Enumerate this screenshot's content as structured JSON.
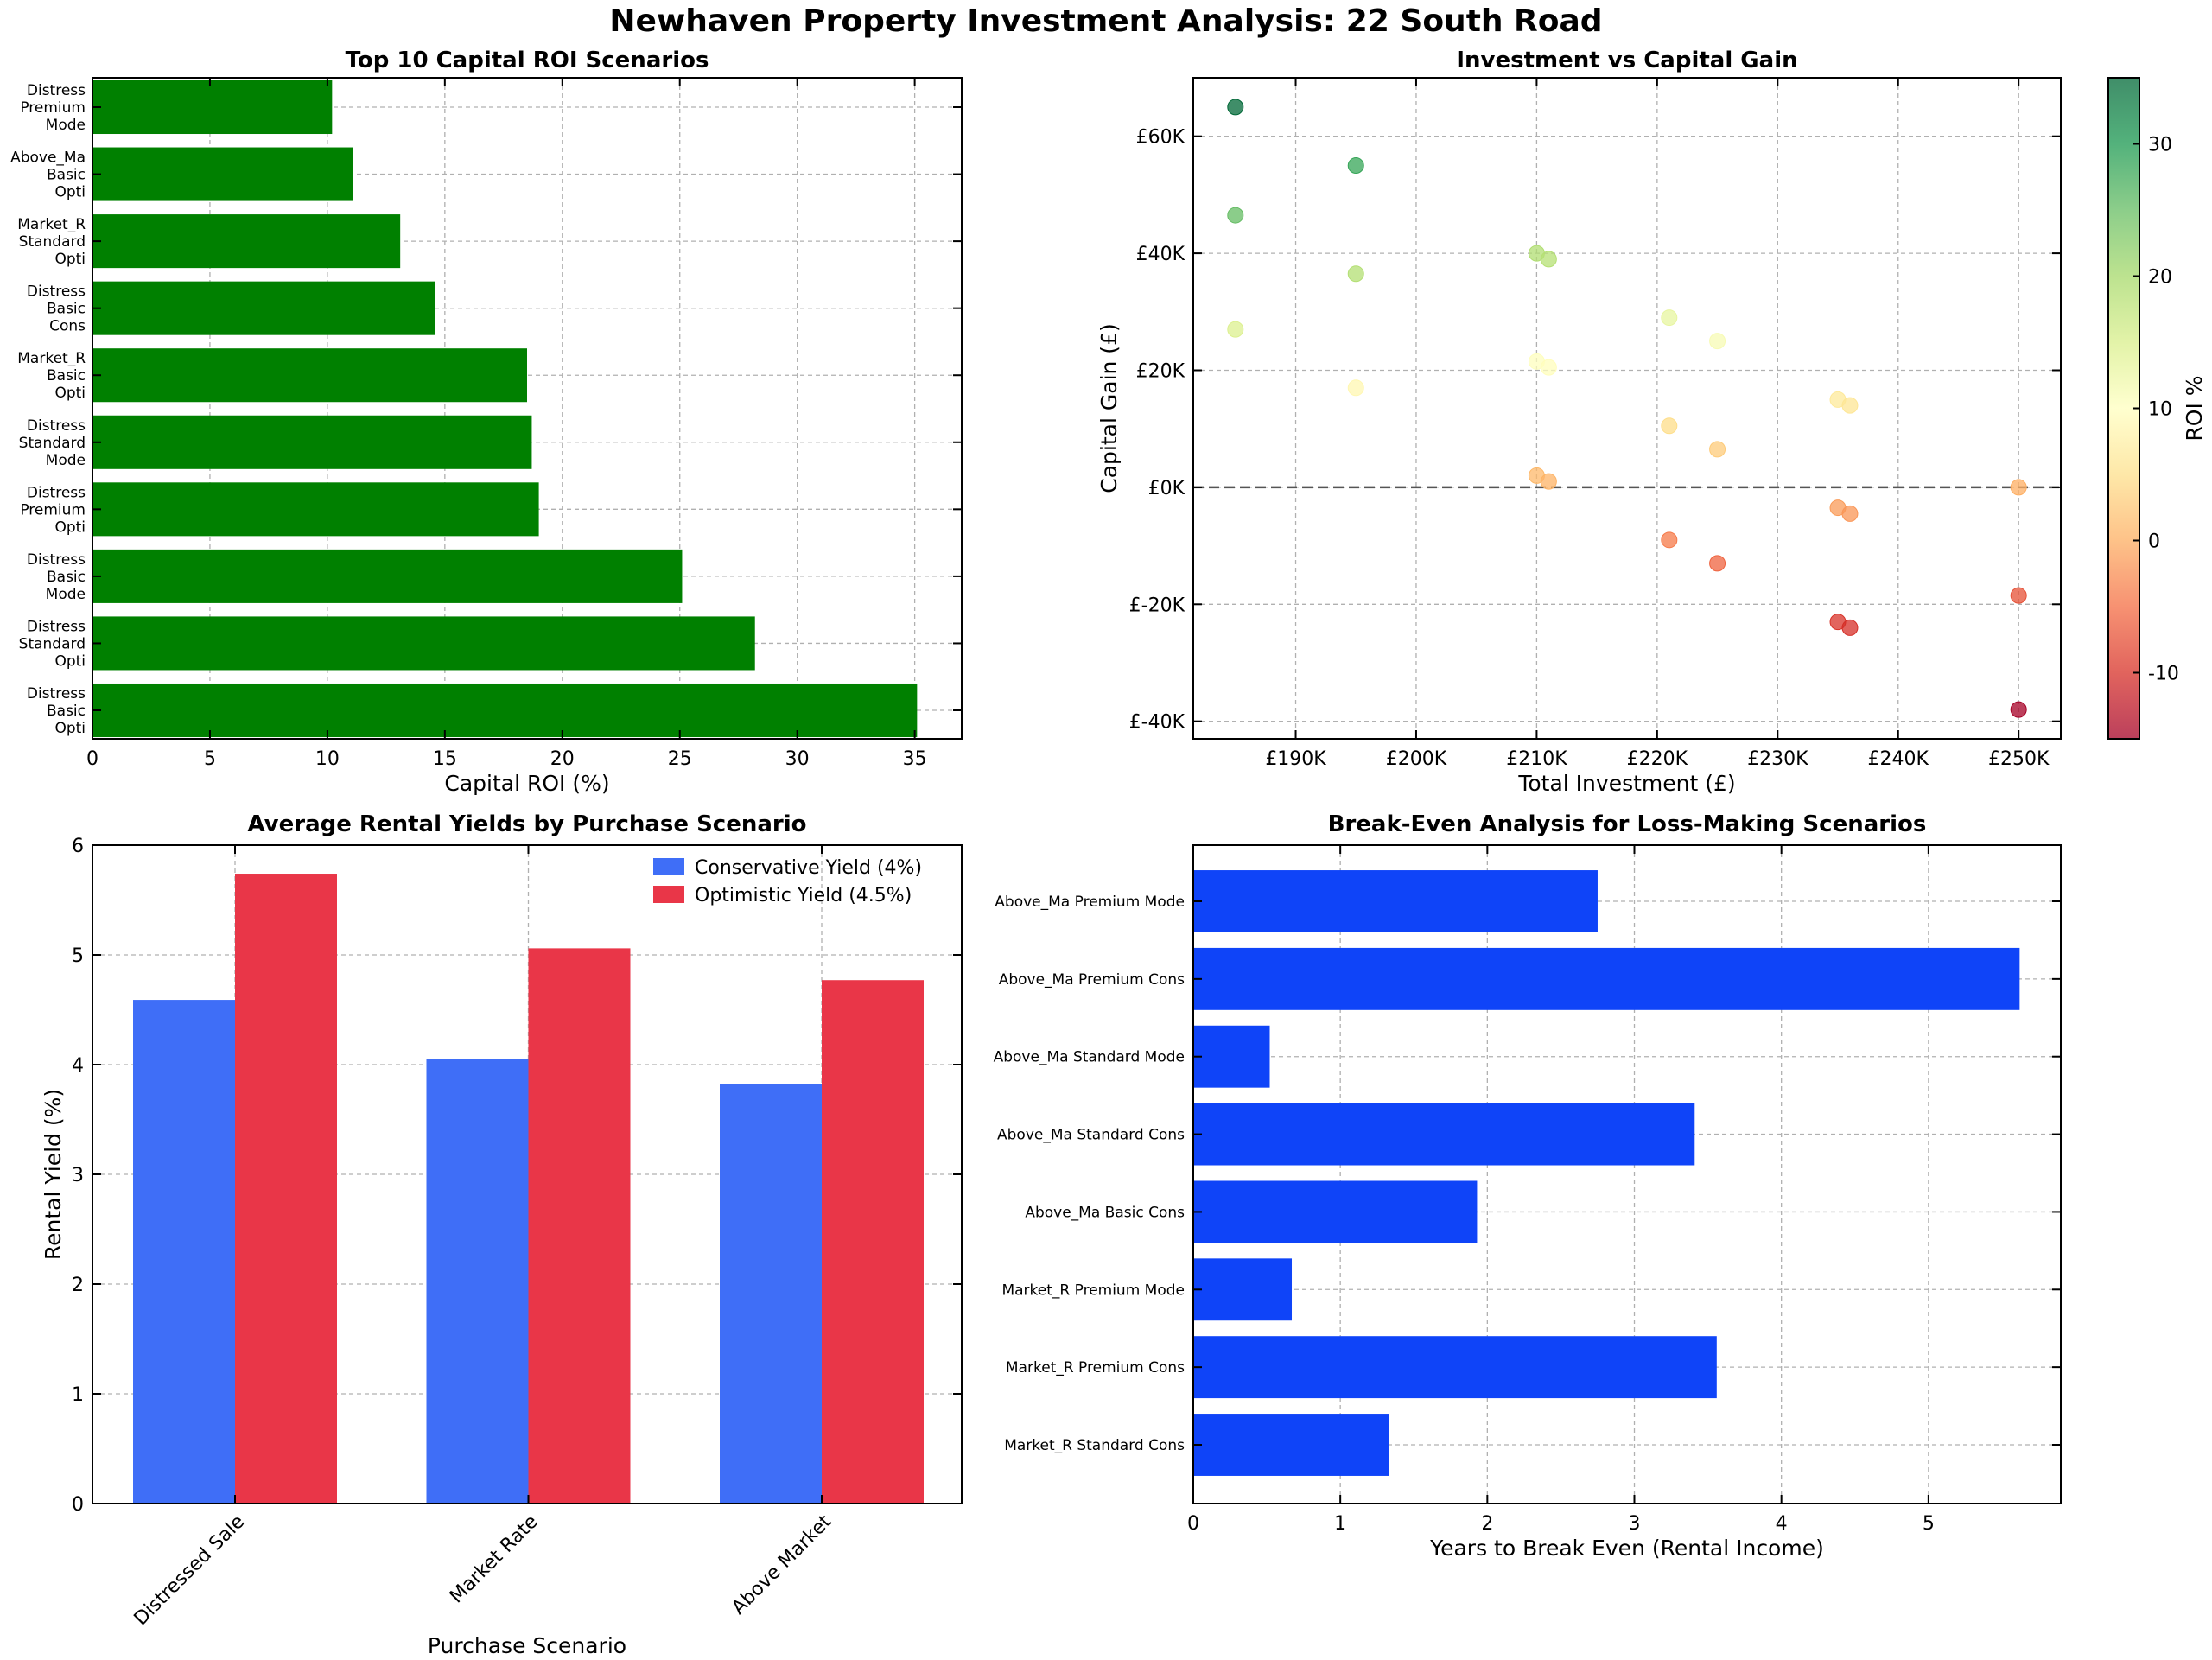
{
  "figure": {
    "title": "Newhaven Property Investment Analysis: 22 South Road",
    "colors": {
      "roi_bar": "#008000",
      "conservative": "#3f6ef7",
      "optimistic": "#e93648",
      "break_even": "#0f44f8"
    }
  },
  "chart_data": [
    {
      "type": "bar",
      "orientation": "horizontal",
      "title": "Top 10 Capital ROI Scenarios",
      "xlabel": "Capital ROI (%)",
      "ylabel": "",
      "xlim": [
        0,
        37
      ],
      "xticks": [
        0,
        5,
        10,
        15,
        20,
        25,
        30,
        35
      ],
      "grid": true,
      "categories": [
        "Distress\nBasic\nOpti",
        "Distress\nStandard\nOpti",
        "Distress\nBasic\nMode",
        "Distress\nPremium\nOpti",
        "Distress\nStandard\nMode",
        "Market_R\nBasic\nOpti",
        "Distress\nBasic\nCons",
        "Market_R\nStandard\nOpti",
        "Above_Ma\nBasic\nOpti",
        "Distress\nPremium\nMode"
      ],
      "values": [
        35.1,
        28.2,
        25.1,
        19.0,
        18.7,
        18.5,
        14.6,
        13.1,
        11.1,
        10.2
      ]
    },
    {
      "type": "scatter",
      "title": "Investment vs Capital Gain",
      "xlabel": "Total Investment (£)",
      "ylabel": "Capital Gain (£)",
      "xlim": [
        181500,
        253500
      ],
      "ylim": [
        -43000,
        70000
      ],
      "xticks": [
        190000,
        200000,
        210000,
        220000,
        230000,
        240000,
        250000
      ],
      "xtick_labels": [
        "£190K",
        "£200K",
        "£210K",
        "£220K",
        "£230K",
        "£240K",
        "£250K"
      ],
      "yticks": [
        -40000,
        -20000,
        0,
        20000,
        40000,
        60000
      ],
      "ytick_labels": [
        "£-40K",
        "£-20K",
        "£0K",
        "£20K",
        "£40K",
        "£60K"
      ],
      "reference_line_y": 0,
      "colorbar": {
        "label": "ROI %",
        "range": [
          -15,
          35
        ],
        "ticks": [
          "-10",
          "0",
          "10",
          "20",
          "30"
        ],
        "colormap": "RdYlGn"
      },
      "grid": true,
      "points": [
        {
          "x": 185000,
          "y": 65000,
          "roi": 35.1
        },
        {
          "x": 185000,
          "y": 46500,
          "roi": 25.1
        },
        {
          "x": 185000,
          "y": 27000,
          "roi": 14.6
        },
        {
          "x": 195000,
          "y": 55000,
          "roi": 28.2
        },
        {
          "x": 195000,
          "y": 36500,
          "roi": 18.7
        },
        {
          "x": 195000,
          "y": 17000,
          "roi": 8.7
        },
        {
          "x": 210000,
          "y": 40000,
          "roi": 19.0
        },
        {
          "x": 211000,
          "y": 39000,
          "roi": 18.5
        },
        {
          "x": 210000,
          "y": 21500,
          "roi": 10.2
        },
        {
          "x": 211000,
          "y": 20500,
          "roi": 9.7
        },
        {
          "x": 210000,
          "y": 2000,
          "roi": 1.0
        },
        {
          "x": 211000,
          "y": 1000,
          "roi": 0.5
        },
        {
          "x": 221000,
          "y": 29000,
          "roi": 13.1
        },
        {
          "x": 221000,
          "y": 10500,
          "roi": 4.8
        },
        {
          "x": 221000,
          "y": -9000,
          "roi": -4.1
        },
        {
          "x": 225000,
          "y": 25000,
          "roi": 11.1
        },
        {
          "x": 225000,
          "y": 6500,
          "roi": 2.9
        },
        {
          "x": 225000,
          "y": -13000,
          "roi": -5.8
        },
        {
          "x": 235000,
          "y": 15000,
          "roi": 6.4
        },
        {
          "x": 236000,
          "y": 14000,
          "roi": 5.9
        },
        {
          "x": 235000,
          "y": -3500,
          "roi": -1.5
        },
        {
          "x": 236000,
          "y": -4500,
          "roi": -1.9
        },
        {
          "x": 235000,
          "y": -23000,
          "roi": -9.8
        },
        {
          "x": 236000,
          "y": -24000,
          "roi": -10.2
        },
        {
          "x": 250000,
          "y": 0,
          "roi": 0.0
        },
        {
          "x": 250000,
          "y": -18500,
          "roi": -7.4
        },
        {
          "x": 250000,
          "y": -38000,
          "roi": -15.2
        }
      ]
    },
    {
      "type": "bar",
      "title": "Average Rental Yields by Purchase Scenario",
      "xlabel": "Purchase Scenario",
      "ylabel": "Rental Yield (%)",
      "ylim": [
        0,
        6
      ],
      "yticks": [
        0,
        1,
        2,
        3,
        4,
        5,
        6
      ],
      "legend_position": "upper-right",
      "grid": true,
      "categories": [
        "Distressed Sale",
        "Market Rate",
        "Above Market"
      ],
      "series": [
        {
          "name": "Conservative Yield (4%)",
          "values": [
            4.59,
            4.05,
            3.82
          ]
        },
        {
          "name": "Optimistic Yield (4.5%)",
          "values": [
            5.74,
            5.06,
            4.77
          ]
        }
      ]
    },
    {
      "type": "bar",
      "orientation": "horizontal",
      "title": "Break-Even Analysis for Loss-Making Scenarios",
      "xlabel": "Years to Break Even (Rental Income)",
      "ylabel": "",
      "xlim": [
        0,
        5.9
      ],
      "xticks": [
        0,
        1,
        2,
        3,
        4,
        5
      ],
      "grid": true,
      "categories": [
        "Above_Ma Premium Mode",
        "Above_Ma Premium Cons",
        "Above_Ma Standard Mode",
        "Above_Ma Standard Cons",
        "Above_Ma Basic Cons",
        "Market_R Premium Mode",
        "Market_R Premium Cons",
        "Market_R Standard Cons"
      ],
      "values": [
        2.75,
        5.62,
        0.52,
        3.41,
        1.93,
        0.67,
        3.56,
        1.33
      ]
    }
  ]
}
